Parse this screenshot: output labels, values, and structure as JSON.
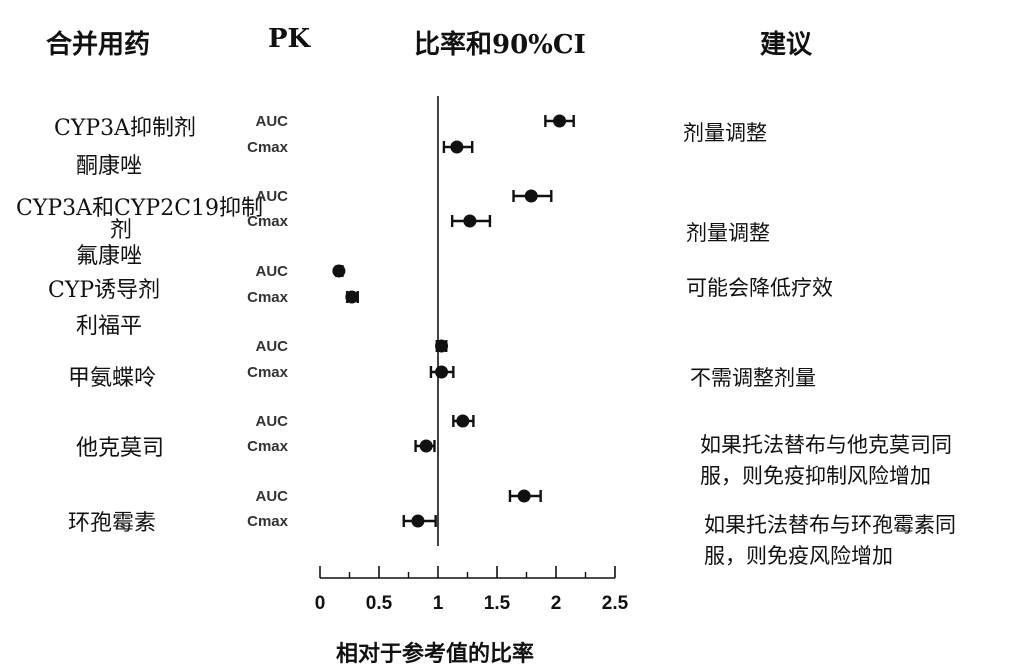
{
  "headers": {
    "drug": "合并用药",
    "pk": "PK",
    "ratio": "比率和90%CI",
    "recommendation": "建议"
  },
  "drugs": [
    {
      "class": "CYP3A抑制剂",
      "name": "酮康唑"
    },
    {
      "class": "CYP3A和CYP2C19抑制",
      "class_cont": "剂",
      "name": "氟康唑"
    },
    {
      "class": "CYP诱导剂",
      "name": "利福平"
    },
    {
      "name": "甲氨蝶呤"
    },
    {
      "name": "他克莫司"
    },
    {
      "name": "环孢霉素"
    }
  ],
  "recommendations": [
    {
      "lines": [
        "剂量调整"
      ]
    },
    {
      "lines": [
        "剂量调整"
      ]
    },
    {
      "lines": [
        "可能会降低疗效"
      ]
    },
    {
      "lines": [
        "不需调整剂量"
      ]
    },
    {
      "lines": [
        "如果托法替布与他克莫司同",
        "服，则免疫抑制风险增加"
      ]
    },
    {
      "lines": [
        "如果托法替布与环孢霉素同",
        "服，则免疫风险增加"
      ]
    }
  ],
  "chart_data": {
    "type": "scatter",
    "subtype": "forest",
    "xlabel": "相对于参考值的比率",
    "xlim": [
      0,
      2.5
    ],
    "xticks": [
      "0",
      "0.5",
      "1",
      "1.5",
      "2",
      "2.5"
    ],
    "xtick_values": [
      0,
      0.5,
      1,
      1.5,
      2,
      2.5
    ],
    "reference_line": 1,
    "rows": [
      {
        "drug": "酮康唑",
        "pk": "AUC",
        "ratio": 2.03,
        "ci": [
          1.91,
          2.15
        ]
      },
      {
        "drug": "酮康唑",
        "pk": "Cmax",
        "ratio": 1.16,
        "ci": [
          1.05,
          1.29
        ]
      },
      {
        "drug": "氟康唑",
        "pk": "AUC",
        "ratio": 1.79,
        "ci": [
          1.64,
          1.96
        ]
      },
      {
        "drug": "氟康唑",
        "pk": "Cmax",
        "ratio": 1.27,
        "ci": [
          1.12,
          1.44
        ]
      },
      {
        "drug": "利福平",
        "pk": "AUC",
        "ratio": 0.16,
        "ci": [
          0.14,
          0.19
        ]
      },
      {
        "drug": "利福平",
        "pk": "Cmax",
        "ratio": 0.27,
        "ci": [
          0.23,
          0.32
        ]
      },
      {
        "drug": "甲氨蝶呤",
        "pk": "AUC",
        "ratio": 1.03,
        "ci": [
          0.99,
          1.07
        ]
      },
      {
        "drug": "甲氨蝶呤",
        "pk": "Cmax",
        "ratio": 1.03,
        "ci": [
          0.94,
          1.13
        ]
      },
      {
        "drug": "他克莫司",
        "pk": "AUC",
        "ratio": 1.21,
        "ci": [
          1.13,
          1.3
        ]
      },
      {
        "drug": "他克莫司",
        "pk": "Cmax",
        "ratio": 0.9,
        "ci": [
          0.81,
          0.97
        ]
      },
      {
        "drug": "环孢霉素",
        "pk": "AUC",
        "ratio": 1.73,
        "ci": [
          1.61,
          1.87
        ]
      },
      {
        "drug": "环孢霉素",
        "pk": "Cmax",
        "ratio": 0.83,
        "ci": [
          0.71,
          0.98
        ]
      }
    ]
  }
}
